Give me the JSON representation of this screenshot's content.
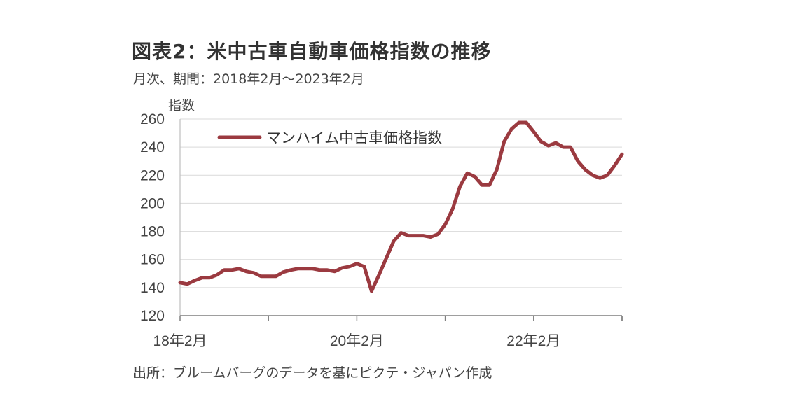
{
  "header": {
    "title": "図表2：米中古車自動車価格指数の推移",
    "subtitle": "月次、期間：2018年2月～2023年2月"
  },
  "footer": {
    "source": "出所：ブルームバーグのデータを基にピクテ・ジャパン作成"
  },
  "chart_data": {
    "type": "line",
    "ylabel": "指数",
    "ylim": [
      120,
      260
    ],
    "yticks": [
      120,
      140,
      160,
      180,
      200,
      220,
      240,
      260
    ],
    "xtick_labels": [
      {
        "label": "18年2月",
        "index": 0
      },
      {
        "label": "20年2月",
        "index": 24
      },
      {
        "label": "22年2月",
        "index": 48
      }
    ],
    "grid": "horizontal",
    "legend_position": "top-left",
    "series": [
      {
        "name": "マンハイム中古車価格指数",
        "color": "#9b3a40",
        "values": [
          143.5,
          142.5,
          145,
          147,
          147,
          149,
          152.5,
          152.5,
          153.5,
          151.5,
          150.5,
          148,
          148,
          148,
          151,
          152.5,
          153.5,
          153.5,
          153.5,
          152.5,
          152.5,
          151.5,
          154,
          155,
          157,
          155,
          137.5,
          149,
          161,
          173,
          179,
          177,
          177,
          177,
          176,
          178,
          185,
          196,
          212,
          221.5,
          219,
          213,
          213,
          224,
          244,
          253,
          257.5,
          257.5,
          251,
          244,
          241,
          243,
          240,
          240,
          230,
          224,
          220,
          218,
          220,
          227,
          235
        ]
      }
    ]
  }
}
